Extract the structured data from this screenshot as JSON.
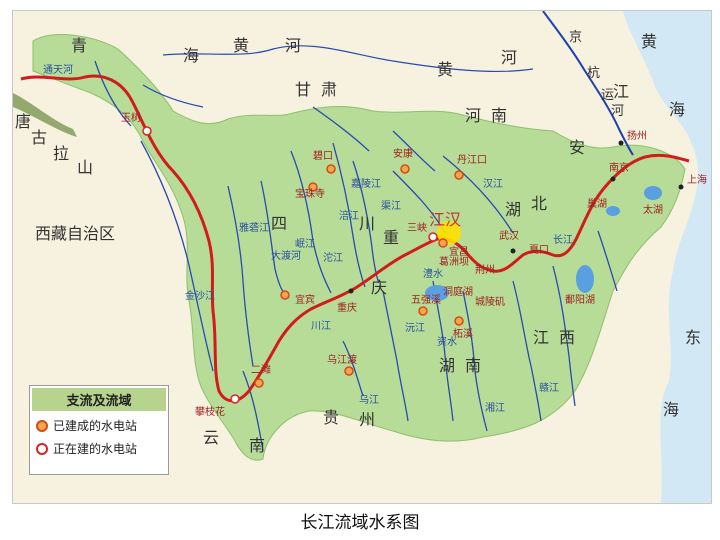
{
  "map": {
    "caption": "长江流域水系图",
    "colors": {
      "basin": "#b6dc98",
      "river_main": "#d21c1c",
      "tributary": "#2a49b3",
      "sea": "#d2e8f5",
      "land": "#f6f2df",
      "highlight": "#ffe000"
    },
    "regions": {
      "qinghai_1": "青",
      "qinghai_2": "海",
      "huanghe_1": "黄",
      "huanghe_2": "河",
      "gansu_1": "甘",
      "gansu_2": "肃",
      "huanghe2_1": "黄",
      "huanghe2_2": "河",
      "henan_1": "河",
      "henan_2": "南",
      "anhui_1": "安",
      "jiangsu_1": "江",
      "tibet": "西藏自治区",
      "tanggula_1": "唐",
      "tanggula_2": "古",
      "tanggula_3": "拉",
      "tanggula_4": "山",
      "sichuan_1": "四",
      "sichuan_2": "川",
      "chongqing_1": "重",
      "chongqing_2": "庆",
      "hubei_1": "湖",
      "hubei_2": "北",
      "hunan_1": "湖",
      "hunan_2": "南",
      "jiangxi_1": "江",
      "jiangxi_2": "西",
      "guizhou_1": "贵",
      "guizhou_2": "州",
      "yunnan_1": "云",
      "yunnan_2": "南",
      "yellow_sea_1": "黄",
      "yellow_sea_2": "海",
      "east_sea_1": "东",
      "east_sea_2": "海",
      "jing_1": "京",
      "hang_1": "杭",
      "yun_1": "运",
      "he_1": "河"
    },
    "highlight_label": "江汉",
    "places": {
      "yushu": "玉树",
      "panzhihua": "攀枝花",
      "yibin": "宜宾",
      "chongqing_city": "重庆",
      "yichang": "宜昌",
      "wuhan": "武汉",
      "nanjing": "南京",
      "shanghai": "上海",
      "ankang": "安康",
      "danjiangkou": "丹江口",
      "bikou": "碧口",
      "baozhusi": "宝珠寺",
      "ertan": "二滩",
      "gezhouba": "葛洲坝",
      "sanxia": "三峡",
      "wujiangdu": "乌江渡",
      "wuqiangxi": "五强溪",
      "zhexi": "柘溪",
      "yangzhou": "扬州",
      "xiakou": "夏口",
      "chaohu": "巢湖",
      "taihu": "太湖",
      "poyanghu": "鄱阳湖",
      "dongtinghu": "洞庭湖",
      "chenglingji": "城陵矶",
      "jingzhou": "荆州"
    },
    "rivers": {
      "tongtian": "通天河",
      "jinsha": "金沙江",
      "yalong": "雅砻江",
      "dadu": "大渡河",
      "min": "岷江",
      "jialing": "嘉陵江",
      "han": "汉江",
      "wu": "乌江",
      "xiang": "湘江",
      "gan": "赣江",
      "yuan": "沅江",
      "tuo": "沱江",
      "qu": "渠江",
      "fu": "涪江",
      "zi": "资水",
      "li": "澧水",
      "yangtze": "长江",
      "chuanjiang": "川江"
    }
  },
  "legend": {
    "title": "支流及流域",
    "built": "已建成的水电站",
    "building": "正在建的水电站"
  }
}
